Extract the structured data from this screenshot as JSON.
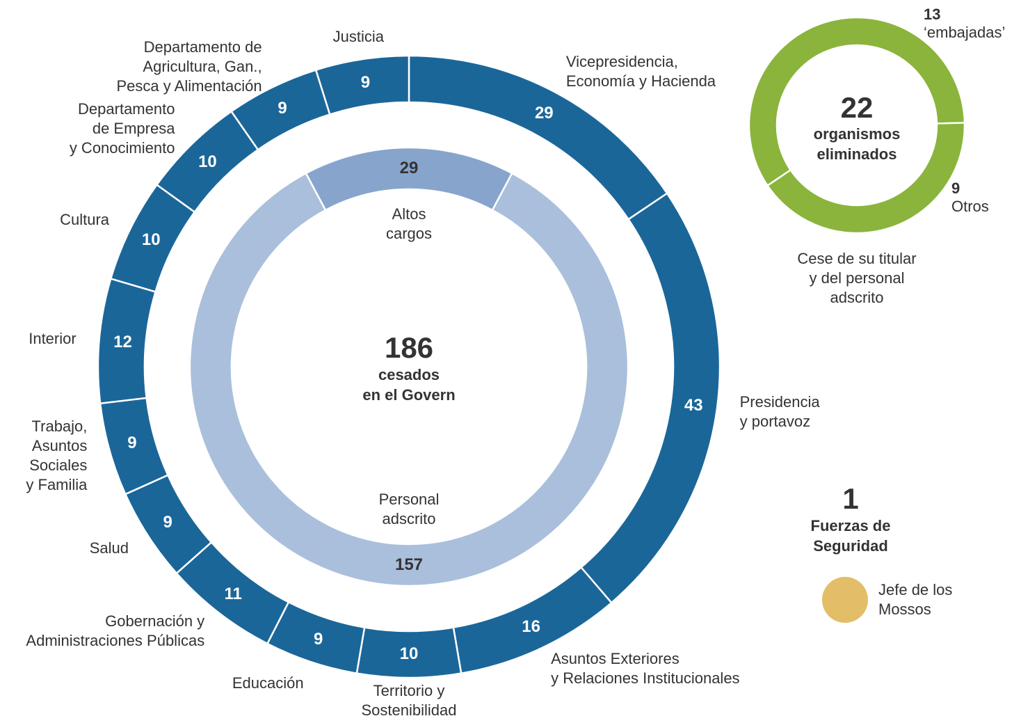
{
  "chart_data": [
    {
      "type": "donut",
      "total": 186,
      "title": "cesados\nen el Govern",
      "categories": [
        "Vicepresidencia,\nEconomía y Hacienda",
        "Presidencia\ny portavoz",
        "Asuntos Exteriores\ny Relaciones Institucionales",
        "Territorio y\nSostenibilidad",
        "Educación",
        "Gobernación y\nAdministraciones Públicas",
        "Salud",
        "Trabajo,\nAsuntos\nSociales\ny Familia",
        "Interior",
        "Cultura",
        "Departamento\nde Empresa\ny Conocimiento",
        "Departamento de\nAgricultura, Gan.,\nPesca y Alimentación",
        "Justicia"
      ],
      "values": [
        29,
        43,
        16,
        10,
        9,
        11,
        9,
        9,
        12,
        10,
        10,
        9,
        9
      ],
      "color": "#1b6699",
      "inner_ring": {
        "categories": [
          "Altos\ncargos",
          "Personal\nadscrito"
        ],
        "values": [
          29,
          157
        ],
        "colors": [
          "#87a5cc",
          "#aabfdb"
        ]
      }
    },
    {
      "type": "donut",
      "total": 22,
      "title": "organismos\neliminados",
      "subtitle": "Cese de su titular\ny del personal\nadscrito",
      "categories": [
        "‘embajadas’",
        "Otros"
      ],
      "values": [
        13,
        9
      ],
      "color": "#8ab43c"
    },
    {
      "type": "dot",
      "title": "Fuerzas de\nSeguridad",
      "categories": [
        "Jefe de los\nMossos"
      ],
      "values": [
        1
      ],
      "color": "#e3bd67"
    }
  ]
}
